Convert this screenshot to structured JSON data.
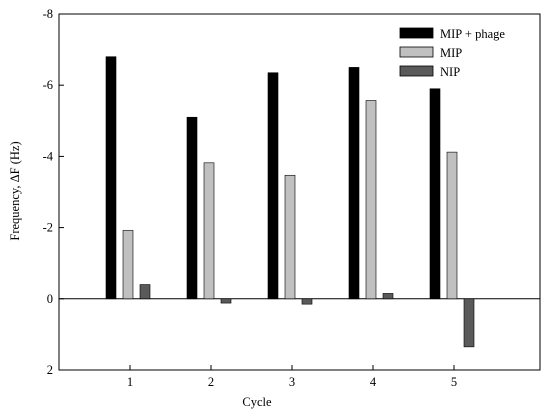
{
  "chart_data": {
    "type": "bar",
    "title": "",
    "xlabel": "Cycle",
    "ylabel": "Frequency, ΔF (Hz)",
    "categories": [
      "1",
      "2",
      "3",
      "4",
      "5"
    ],
    "y_axis_inverted": true,
    "ylim": [
      -8,
      2
    ],
    "y_ticks": [
      -8,
      -6,
      -4,
      -2,
      0,
      2
    ],
    "y_tick_labels": [
      "-8",
      "-6",
      "-4",
      "-2",
      "0",
      "2"
    ],
    "series": [
      {
        "name": "MIP + phage",
        "color": "#000000",
        "values": [
          -6.8,
          -5.1,
          -6.35,
          -6.5,
          -5.9
        ]
      },
      {
        "name": "MIP",
        "color": "#c0c0c0",
        "values": [
          -1.92,
          -3.82,
          -3.47,
          -5.57,
          -4.12
        ]
      },
      {
        "name": "NIP",
        "color": "#5a5a5a",
        "values": [
          -0.4,
          0.12,
          0.15,
          -0.15,
          1.35
        ]
      }
    ],
    "legend_position": "top-right",
    "grid": false,
    "zero_line": true
  }
}
